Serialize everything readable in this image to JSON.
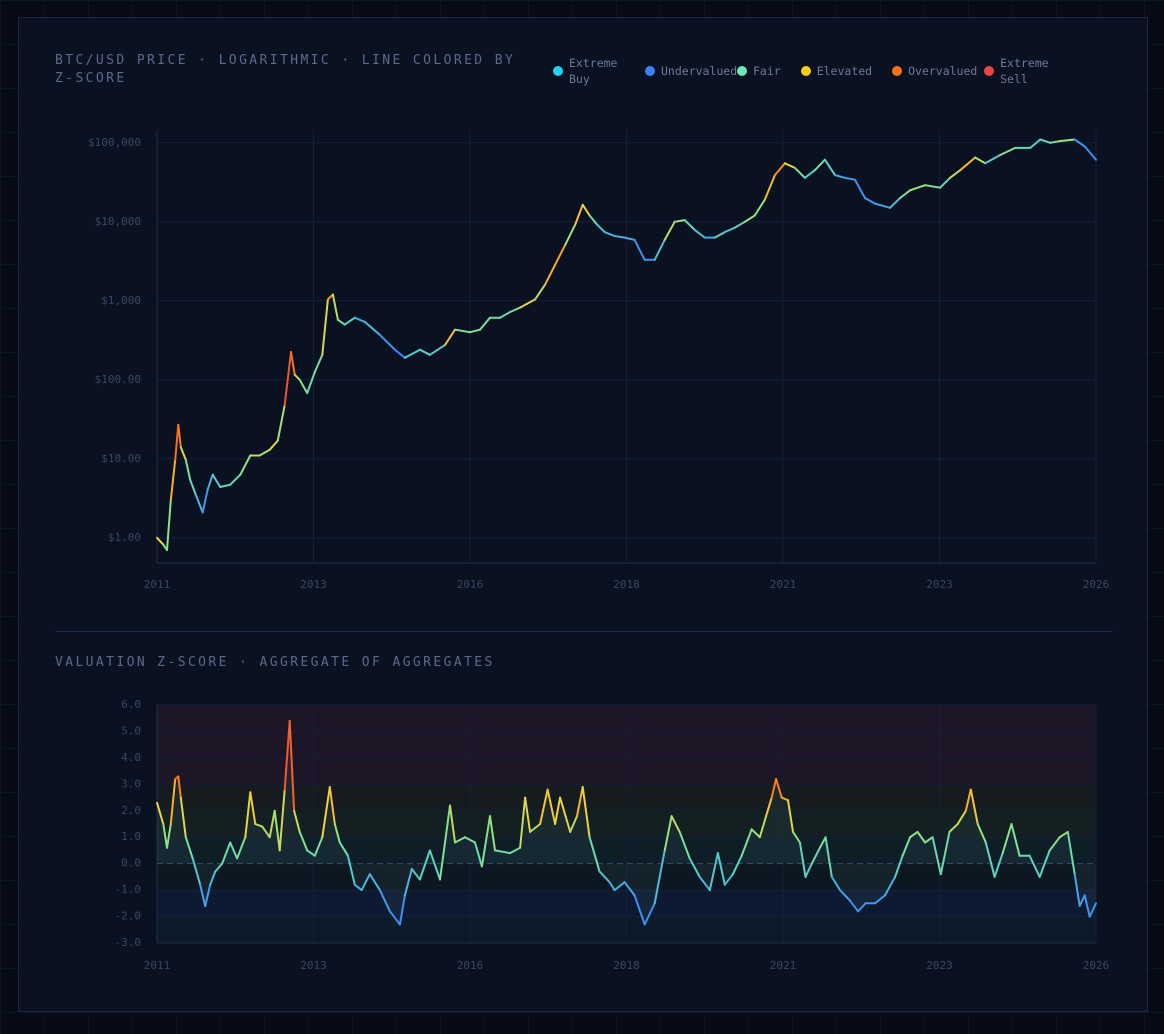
{
  "chart_data": [
    {
      "type": "line",
      "title": "BTC/USD PRICE · LOGARITHMIC · LINE COLORED BY Z-SCORE",
      "legend": [
        {
          "name": "Extreme Buy",
          "color": "#22d3ee"
        },
        {
          "name": "Undervalued",
          "color": "#3b82f6"
        },
        {
          "name": "Fair",
          "color": "#6ee7b7"
        },
        {
          "name": "Elevated",
          "color": "#facc15"
        },
        {
          "name": "Overvalued",
          "color": "#f97316"
        },
        {
          "name": "Extreme Sell",
          "color": "#ef4444"
        }
      ],
      "log_scale": true,
      "grid": true,
      "xlim": [
        2011,
        2026
      ],
      "xticks": [
        {
          "value": 2011,
          "label": "2011"
        },
        {
          "value": 2013.5,
          "label": "2013"
        },
        {
          "value": 2016,
          "label": "2016"
        },
        {
          "value": 2018.5,
          "label": "2018"
        },
        {
          "value": 2021,
          "label": "2021"
        },
        {
          "value": 2023.5,
          "label": "2023"
        },
        {
          "value": 2026,
          "label": "2026"
        }
      ],
      "ylim": [
        0.48,
        145000
      ],
      "yticks": [
        {
          "value": 1,
          "label": "$1.00"
        },
        {
          "value": 10,
          "label": "$10.00"
        },
        {
          "value": 100,
          "label": "$100.00"
        },
        {
          "value": 1000,
          "label": "$1,000"
        },
        {
          "value": 10000,
          "label": "$10,000"
        },
        {
          "value": 100000,
          "label": "$100,000"
        }
      ],
      "x": [
        2011.0,
        2011.1,
        2011.16,
        2011.22,
        2011.29,
        2011.34,
        2011.38,
        2011.46,
        2011.53,
        2011.62,
        2011.73,
        2011.81,
        2011.89,
        2012.01,
        2012.17,
        2012.33,
        2012.49,
        2012.64,
        2012.8,
        2012.93,
        2013.04,
        2013.14,
        2013.2,
        2013.28,
        2013.4,
        2013.52,
        2013.64,
        2013.73,
        2013.81,
        2013.89,
        2014.0,
        2014.16,
        2014.32,
        2014.56,
        2014.8,
        2014.96,
        2015.2,
        2015.36,
        2015.6,
        2015.76,
        2016.0,
        2016.16,
        2016.32,
        2016.48,
        2016.64,
        2016.8,
        2017.04,
        2017.2,
        2017.36,
        2017.52,
        2017.68,
        2017.8,
        2017.91,
        2018.03,
        2018.15,
        2018.31,
        2018.47,
        2018.63,
        2018.79,
        2018.95,
        2019.11,
        2019.27,
        2019.43,
        2019.59,
        2019.75,
        2019.91,
        2020.07,
        2020.23,
        2020.39,
        2020.55,
        2020.71,
        2020.87,
        2021.03,
        2021.19,
        2021.35,
        2021.51,
        2021.67,
        2021.83,
        2021.99,
        2022.15,
        2022.31,
        2022.47,
        2022.71,
        2022.87,
        2023.03,
        2023.27,
        2023.51,
        2023.67,
        2023.83,
        2024.07,
        2024.23,
        2024.47,
        2024.71,
        2024.95,
        2025.11,
        2025.27,
        2025.42,
        2025.66,
        2025.82,
        2026.0
      ],
      "values": [
        1.0,
        0.82,
        0.7,
        3.0,
        9.7,
        27,
        14,
        9.7,
        5.4,
        3.5,
        2.1,
        4.1,
        6.3,
        4.4,
        4.7,
        6.3,
        11,
        11,
        13,
        17,
        48,
        225,
        116,
        100,
        68,
        125,
        207,
        1040,
        1200,
        575,
        500,
        610,
        540,
        370,
        240,
        190,
        240,
        207,
        276,
        430,
        400,
        430,
        610,
        610,
        720,
        820,
        1040,
        1600,
        2850,
        5100,
        9200,
        16400,
        12000,
        9200,
        7400,
        6600,
        6300,
        5900,
        3300,
        3300,
        5900,
        10000,
        10500,
        7900,
        6300,
        6300,
        7400,
        8400,
        10000,
        12000,
        19000,
        39000,
        55000,
        48000,
        36000,
        45000,
        61000,
        39000,
        36000,
        34000,
        20000,
        17000,
        15000,
        20000,
        25000,
        29000,
        27000,
        36000,
        45000,
        65000,
        55000,
        70000,
        86000,
        86000,
        110000,
        100000,
        105000,
        110000,
        90000,
        61000
      ]
    },
    {
      "type": "line",
      "title": "VALUATION Z-SCORE · AGGREGATE OF AGGREGATES",
      "grid": true,
      "xlim": [
        2011,
        2026
      ],
      "xticks": [
        {
          "value": 2011,
          "label": "2011"
        },
        {
          "value": 2013.5,
          "label": "2013"
        },
        {
          "value": 2016,
          "label": "2016"
        },
        {
          "value": 2018.5,
          "label": "2018"
        },
        {
          "value": 2021,
          "label": "2021"
        },
        {
          "value": 2023.5,
          "label": "2023"
        },
        {
          "value": 2026,
          "label": "2026"
        }
      ],
      "ylim": [
        -3,
        6
      ],
      "yticks": [
        {
          "value": -3,
          "label": "-3.0"
        },
        {
          "value": -2,
          "label": "-2.0"
        },
        {
          "value": -1,
          "label": "-1.0"
        },
        {
          "value": 0,
          "label": "0.0"
        },
        {
          "value": 1,
          "label": "1.0"
        },
        {
          "value": 2,
          "label": "2.0"
        },
        {
          "value": 3,
          "label": "3.0"
        },
        {
          "value": 4,
          "label": "4.0"
        },
        {
          "value": 5,
          "label": "5.0"
        },
        {
          "value": 6,
          "label": "6.0"
        }
      ],
      "bands": [
        {
          "from": 3,
          "to": 6,
          "color": "#1d1626"
        },
        {
          "from": 2,
          "to": 3,
          "color": "#161b1f"
        },
        {
          "from": 1,
          "to": 2,
          "color": "#131f20"
        },
        {
          "from": 0,
          "to": 1,
          "color": "#0e1e27"
        },
        {
          "from": -1,
          "to": 0,
          "color": "#0c1721"
        },
        {
          "from": -2,
          "to": -1,
          "color": "#0d1a31"
        },
        {
          "from": -3,
          "to": -2,
          "color": "#0c1b29"
        }
      ],
      "x": [
        2011.0,
        2011.1,
        2011.16,
        2011.22,
        2011.29,
        2011.34,
        2011.38,
        2011.46,
        2011.57,
        2011.69,
        2011.77,
        2011.85,
        2011.93,
        2012.04,
        2012.17,
        2012.28,
        2012.41,
        2012.49,
        2012.57,
        2012.68,
        2012.8,
        2012.88,
        2012.96,
        2013.04,
        2013.12,
        2013.19,
        2013.28,
        2013.4,
        2013.52,
        2013.64,
        2013.76,
        2013.84,
        2013.92,
        2014.05,
        2014.16,
        2014.27,
        2014.4,
        2014.56,
        2014.72,
        2014.88,
        2014.96,
        2015.07,
        2015.2,
        2015.36,
        2015.52,
        2015.68,
        2015.76,
        2015.92,
        2016.08,
        2016.19,
        2016.32,
        2016.4,
        2016.64,
        2016.8,
        2016.88,
        2016.96,
        2017.12,
        2017.24,
        2017.36,
        2017.44,
        2017.6,
        2017.71,
        2017.8,
        2017.91,
        2018.07,
        2018.23,
        2018.31,
        2018.47,
        2018.63,
        2018.79,
        2018.95,
        2019.11,
        2019.22,
        2019.35,
        2019.51,
        2019.67,
        2019.83,
        2019.96,
        2020.07,
        2020.2,
        2020.34,
        2020.5,
        2020.63,
        2020.73,
        2020.82,
        2020.89,
        2020.98,
        2021.08,
        2021.16,
        2021.27,
        2021.36,
        2021.46,
        2021.59,
        2021.68,
        2021.78,
        2021.91,
        2022.07,
        2022.2,
        2022.32,
        2022.47,
        2022.63,
        2022.79,
        2022.91,
        2023.03,
        2023.15,
        2023.27,
        2023.39,
        2023.52,
        2023.66,
        2023.79,
        2023.92,
        2024.0,
        2024.11,
        2024.24,
        2024.38,
        2024.51,
        2024.65,
        2024.78,
        2024.94,
        2025.1,
        2025.26,
        2025.42,
        2025.55,
        2025.66,
        2025.74,
        2025.82,
        2025.9,
        2026.0
      ],
      "values": [
        2.3,
        1.5,
        0.6,
        1.5,
        3.2,
        3.3,
        2.5,
        1.0,
        0.2,
        -0.8,
        -1.6,
        -0.8,
        -0.3,
        0.0,
        0.8,
        0.2,
        1.0,
        2.7,
        1.5,
        1.4,
        1.0,
        2.0,
        0.5,
        2.8,
        5.4,
        2.0,
        1.2,
        0.5,
        0.3,
        1.0,
        2.9,
        1.5,
        0.8,
        0.3,
        -0.8,
        -1.0,
        -0.4,
        -1.0,
        -1.8,
        -2.3,
        -1.2,
        -0.2,
        -0.6,
        0.5,
        -0.6,
        2.2,
        0.8,
        1.0,
        0.8,
        -0.1,
        1.8,
        0.5,
        0.4,
        0.6,
        2.5,
        1.2,
        1.5,
        2.8,
        1.5,
        2.5,
        1.2,
        1.8,
        2.9,
        1.0,
        -0.3,
        -0.7,
        -1.0,
        -0.7,
        -1.2,
        -2.3,
        -1.5,
        0.5,
        1.8,
        1.2,
        0.2,
        -0.5,
        -1.0,
        0.4,
        -0.8,
        -0.4,
        0.3,
        1.3,
        1.0,
        1.8,
        2.5,
        3.2,
        2.5,
        2.4,
        1.2,
        0.8,
        -0.5,
        0.0,
        0.6,
        1.0,
        -0.5,
        -1.0,
        -1.4,
        -1.8,
        -1.5,
        -1.5,
        -1.2,
        -0.5,
        0.3,
        1.0,
        1.2,
        0.8,
        1.0,
        -0.4,
        1.2,
        1.5,
        2.0,
        2.8,
        1.5,
        0.8,
        -0.5,
        0.4,
        1.5,
        0.3,
        0.3,
        -0.5,
        0.5,
        1.0,
        1.2,
        -0.4,
        -1.6,
        -1.2,
        -2.0,
        -1.5
      ]
    }
  ]
}
